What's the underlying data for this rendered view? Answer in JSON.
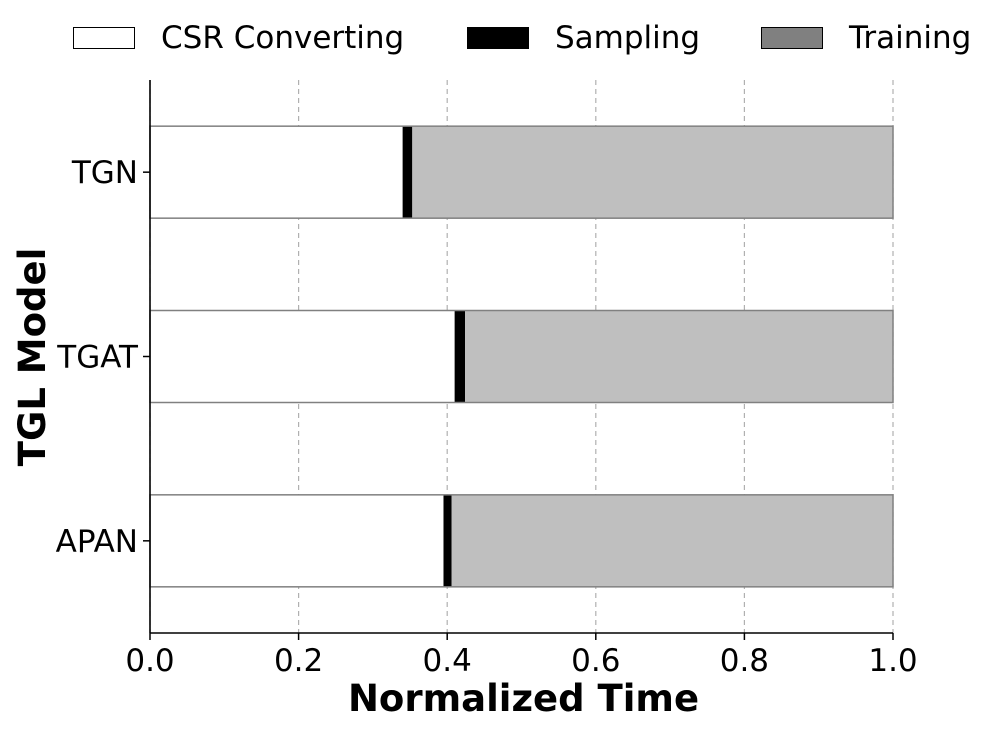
{
  "chart_data": {
    "type": "bar",
    "orientation": "horizontal",
    "stacked": true,
    "categories": [
      "TGN",
      "TGAT",
      "APAN"
    ],
    "series": [
      {
        "name": "CSR Converting",
        "values": [
          0.34,
          0.41,
          0.395
        ],
        "color": "#ffffff"
      },
      {
        "name": "Sampling",
        "values": [
          0.013,
          0.014,
          0.011
        ],
        "color": "#000000"
      },
      {
        "name": "Training",
        "values": [
          0.647,
          0.576,
          0.594
        ],
        "color": "#bfbfbf"
      }
    ],
    "legend_colors": [
      "#ffffff",
      "#000000",
      "#808080"
    ],
    "title": "",
    "xlabel": "Normalized Time",
    "ylabel": "TGL Model",
    "xlim": [
      0,
      1.0
    ],
    "xticks": [
      "0.0",
      "0.2",
      "0.4",
      "0.6",
      "0.8",
      "1.0"
    ],
    "grid": "x, dashed",
    "legend_position": "top"
  }
}
